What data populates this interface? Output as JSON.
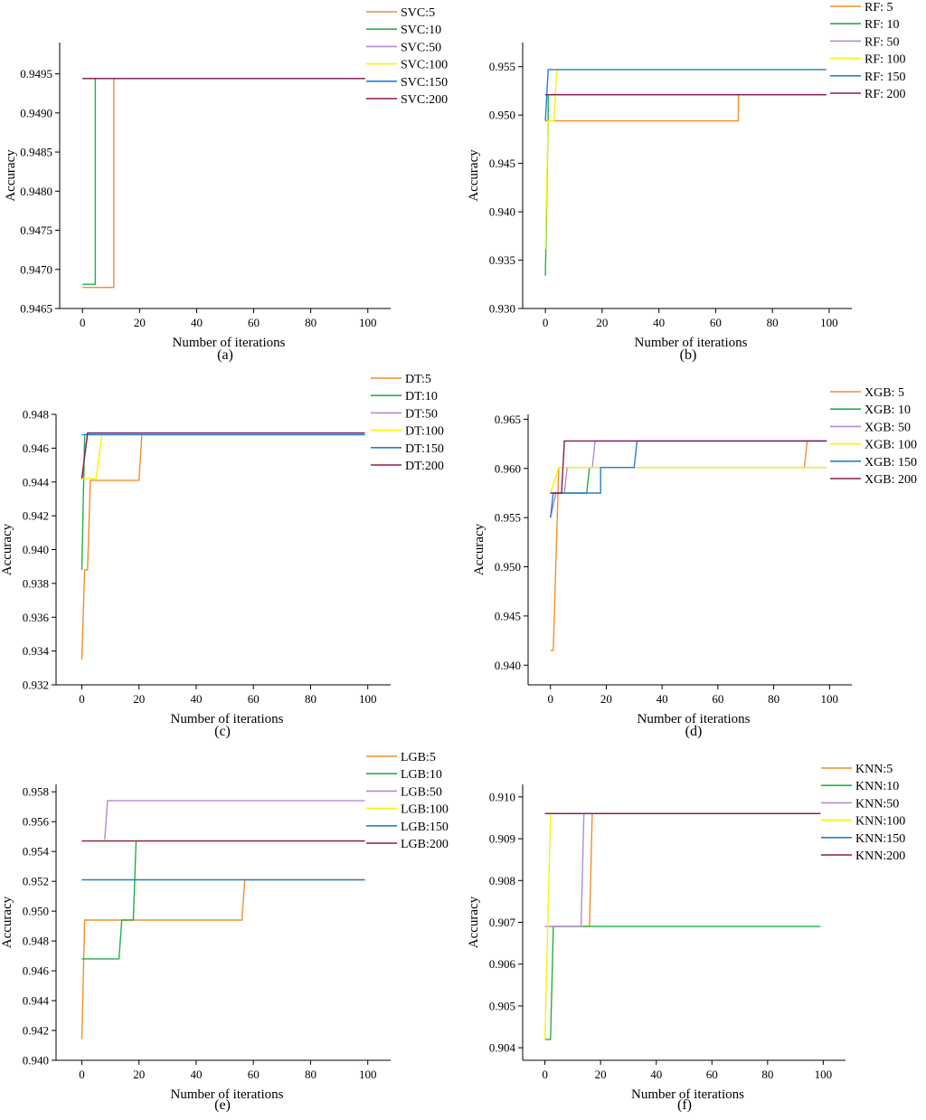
{
  "series_colors": [
    "#f28e2b",
    "#22b04b",
    "#b38bd1",
    "#f5f50a",
    "#1f80d6",
    "#8b1a55"
  ],
  "chart_data": [
    {
      "type": "line",
      "panel_label": "(a)",
      "xlabel": "Number of iterations",
      "ylabel": "Accuracy",
      "xlim": [
        -8,
        108
      ],
      "ylim": [
        0.9465,
        0.9499
      ],
      "xticks": [
        0,
        20,
        40,
        60,
        80,
        100
      ],
      "xtick_labels": [
        "0",
        "20",
        "40",
        "60",
        "80",
        "100"
      ],
      "yticks": [
        0.9465,
        0.947,
        0.9475,
        0.948,
        0.9485,
        0.949,
        0.9495
      ],
      "ytick_labels": [
        "0.9465",
        "0.9470",
        "0.9475",
        "0.9480",
        "0.9485",
        "0.9490",
        "0.9495"
      ],
      "series": [
        {
          "name": "SVC:5",
          "points": [
            [
              0,
              0.94677
            ],
            [
              11,
              0.94677
            ],
            [
              11,
              0.94944
            ],
            [
              99,
              0.94944
            ]
          ]
        },
        {
          "name": "SVC:10",
          "points": [
            [
              0,
              0.94681
            ],
            [
              4.5,
              0.94681
            ],
            [
              4.5,
              0.94944
            ],
            [
              99,
              0.94944
            ]
          ]
        },
        {
          "name": "SVC:50",
          "points": [
            [
              0,
              0.94944
            ],
            [
              99,
              0.94944
            ]
          ]
        },
        {
          "name": "SVC:100",
          "points": [
            [
              0,
              0.94944
            ],
            [
              99,
              0.94944
            ]
          ]
        },
        {
          "name": "SVC:150",
          "points": [
            [
              0,
              0.94944
            ],
            [
              99,
              0.94944
            ]
          ]
        },
        {
          "name": "SVC:200",
          "points": [
            [
              0,
              0.94944
            ],
            [
              99,
              0.94944
            ]
          ]
        }
      ]
    },
    {
      "type": "line",
      "panel_label": "(b)",
      "xlabel": "Number of iterations",
      "ylabel": "Accuracy",
      "xlim": [
        -8,
        108
      ],
      "ylim": [
        0.93,
        0.9575
      ],
      "xticks": [
        0,
        20,
        40,
        60,
        80,
        100
      ],
      "xtick_labels": [
        "0",
        "20",
        "40",
        "60",
        "80",
        "100"
      ],
      "yticks": [
        0.93,
        0.935,
        0.94,
        0.945,
        0.95,
        0.955
      ],
      "ytick_labels": [
        "0.930",
        "0.935",
        "0.940",
        "0.945",
        "0.950",
        "0.955"
      ],
      "series": [
        {
          "name": "RF: 5",
          "points": [
            [
              0,
              0.9494
            ],
            [
              68,
              0.9494
            ],
            [
              68,
              0.9521
            ],
            [
              99,
              0.9521
            ]
          ]
        },
        {
          "name": "RF: 10",
          "points": [
            [
              0,
              0.9334
            ],
            [
              1,
              0.9494
            ],
            [
              1,
              0.9521
            ],
            [
              99,
              0.9521
            ]
          ]
        },
        {
          "name": "RF: 50",
          "points": [
            [
              0,
              0.9521
            ],
            [
              99,
              0.9521
            ]
          ]
        },
        {
          "name": "RF: 100",
          "points": [
            [
              0,
              0.9361
            ],
            [
              1,
              0.9494
            ],
            [
              3,
              0.9494
            ],
            [
              4,
              0.9547
            ],
            [
              99,
              0.9547
            ]
          ]
        },
        {
          "name": "RF: 150",
          "points": [
            [
              0,
              0.9494
            ],
            [
              1,
              0.9547
            ],
            [
              99,
              0.9547
            ]
          ]
        },
        {
          "name": "RF: 200",
          "points": [
            [
              0,
              0.9521
            ],
            [
              99,
              0.9521
            ]
          ]
        }
      ]
    },
    {
      "type": "line",
      "panel_label": "(c)",
      "xlabel": "Number of iterations",
      "ylabel": "Accuracy",
      "xlim": [
        -9,
        108
      ],
      "ylim": [
        0.932,
        0.948
      ],
      "xticks": [
        0,
        20,
        40,
        60,
        80,
        100
      ],
      "xtick_labels": [
        "0",
        "20",
        "40",
        "60",
        "80",
        "100"
      ],
      "yticks": [
        0.932,
        0.934,
        0.936,
        0.938,
        0.94,
        0.942,
        0.944,
        0.946,
        0.948
      ],
      "ytick_labels": [
        "0.932",
        "0.934",
        "0.936",
        "0.938",
        "0.940",
        "0.942",
        "0.944",
        "0.946",
        "0.948"
      ],
      "series": [
        {
          "name": "DT:5",
          "points": [
            [
              0,
              0.9335
            ],
            [
              1,
              0.9388
            ],
            [
              2,
              0.9388
            ],
            [
              3,
              0.9441
            ],
            [
              20,
              0.9441
            ],
            [
              21,
              0.9468
            ],
            [
              99,
              0.9468
            ]
          ]
        },
        {
          "name": "DT:10",
          "points": [
            [
              0,
              0.9388
            ],
            [
              1,
              0.9468
            ],
            [
              99,
              0.9468
            ]
          ]
        },
        {
          "name": "DT:50",
          "points": [
            [
              0,
              0.9442
            ],
            [
              2,
              0.9468
            ],
            [
              99,
              0.9468
            ]
          ]
        },
        {
          "name": "DT:100",
          "points": [
            [
              0,
              0.9442
            ],
            [
              5,
              0.9442
            ],
            [
              7,
              0.9468
            ],
            [
              99,
              0.9468
            ]
          ]
        },
        {
          "name": "DT:150",
          "points": [
            [
              0,
              0.9468
            ],
            [
              99,
              0.9468
            ]
          ]
        },
        {
          "name": "DT:200",
          "points": [
            [
              0,
              0.9442
            ],
            [
              2,
              0.9469
            ],
            [
              99,
              0.9469
            ]
          ]
        }
      ]
    },
    {
      "type": "line",
      "panel_label": "(d)",
      "xlabel": "Number of iterations",
      "ylabel": "Accuracy",
      "xlim": [
        -8,
        108
      ],
      "ylim": [
        0.938,
        0.9655
      ],
      "xticks": [
        0,
        20,
        40,
        60,
        80,
        100
      ],
      "xtick_labels": [
        "0",
        "20",
        "40",
        "60",
        "80",
        "100"
      ],
      "yticks": [
        0.94,
        0.945,
        0.95,
        0.955,
        0.96,
        0.965
      ],
      "ytick_labels": [
        "0.940",
        "0.945",
        "0.950",
        "0.955",
        "0.960",
        "0.965"
      ],
      "series": [
        {
          "name": "XGB: 5",
          "points": [
            [
              0,
              0.9415
            ],
            [
              1,
              0.9415
            ],
            [
              3,
              0.9601
            ],
            [
              91,
              0.9601
            ],
            [
              92,
              0.9628
            ],
            [
              99,
              0.9628
            ]
          ]
        },
        {
          "name": "XGB: 10",
          "points": [
            [
              0,
              0.9575
            ],
            [
              13,
              0.9575
            ],
            [
              14,
              0.9601
            ],
            [
              99,
              0.9601
            ]
          ]
        },
        {
          "name": "XGB: 50",
          "points": [
            [
              0,
              0.955
            ],
            [
              2,
              0.9575
            ],
            [
              5,
              0.9575
            ],
            [
              6,
              0.9601
            ],
            [
              15,
              0.9601
            ],
            [
              16,
              0.9628
            ],
            [
              99,
              0.9628
            ]
          ]
        },
        {
          "name": "XGB: 100",
          "points": [
            [
              0,
              0.9575
            ],
            [
              3,
              0.9601
            ],
            [
              99,
              0.9601
            ]
          ]
        },
        {
          "name": "XGB: 150",
          "points": [
            [
              0,
              0.955
            ],
            [
              1,
              0.9575
            ],
            [
              18,
              0.9575
            ],
            [
              18,
              0.9601
            ],
            [
              30,
              0.9601
            ],
            [
              31,
              0.9628
            ],
            [
              99,
              0.9628
            ]
          ]
        },
        {
          "name": "XGB: 200",
          "points": [
            [
              0,
              0.9575
            ],
            [
              4,
              0.9575
            ],
            [
              5,
              0.9628
            ],
            [
              99,
              0.9628
            ]
          ]
        }
      ]
    },
    {
      "type": "line",
      "panel_label": "(e)",
      "xlabel": "Number of iterations",
      "ylabel": "Accuracy",
      "xlim": [
        -9,
        108
      ],
      "ylim": [
        0.94,
        0.9585
      ],
      "xticks": [
        0,
        20,
        40,
        60,
        80,
        100
      ],
      "xtick_labels": [
        "0",
        "20",
        "40",
        "60",
        "80",
        "100"
      ],
      "yticks": [
        0.94,
        0.942,
        0.944,
        0.946,
        0.948,
        0.95,
        0.952,
        0.954,
        0.956,
        0.958
      ],
      "ytick_labels": [
        "0.940",
        "0.942",
        "0.944",
        "0.946",
        "0.948",
        "0.950",
        "0.952",
        "0.954",
        "0.956",
        "0.958"
      ],
      "series": [
        {
          "name": "LGB:5",
          "points": [
            [
              0,
              0.9414
            ],
            [
              1,
              0.9494
            ],
            [
              56,
              0.9494
            ],
            [
              57,
              0.9521
            ],
            [
              99,
              0.9521
            ]
          ]
        },
        {
          "name": "LGB:10",
          "points": [
            [
              0,
              0.9468
            ],
            [
              13,
              0.9468
            ],
            [
              14,
              0.9494
            ],
            [
              18,
              0.9494
            ],
            [
              19,
              0.9547
            ],
            [
              99,
              0.9547
            ]
          ]
        },
        {
          "name": "LGB:50",
          "points": [
            [
              8,
              0.9548
            ],
            [
              9,
              0.9574
            ],
            [
              99,
              0.9574
            ]
          ]
        },
        {
          "name": "LGB:100",
          "points": [
            [
              0,
              0.9547
            ],
            [
              99,
              0.9547
            ]
          ]
        },
        {
          "name": "LGB:150",
          "points": [
            [
              0,
              0.9521
            ],
            [
              99,
              0.9521
            ]
          ]
        },
        {
          "name": "LGB:200",
          "points": [
            [
              0,
              0.9547
            ],
            [
              99,
              0.9547
            ]
          ]
        }
      ]
    },
    {
      "type": "line",
      "panel_label": "(f)",
      "xlabel": "Number of iterations",
      "ylabel": "Accuracy",
      "xlim": [
        -8,
        108
      ],
      "ylim": [
        0.9037,
        0.9103
      ],
      "xticks": [
        0,
        20,
        40,
        60,
        80,
        100
      ],
      "xtick_labels": [
        "0",
        "20",
        "40",
        "60",
        "80",
        "100"
      ],
      "yticks": [
        0.904,
        0.905,
        0.906,
        0.907,
        0.908,
        0.909,
        0.91
      ],
      "ytick_labels": [
        "0.904",
        "0.905",
        "0.906",
        "0.907",
        "0.908",
        "0.909",
        "0.910"
      ],
      "series": [
        {
          "name": "KNN:5",
          "points": [
            [
              0,
              0.9069
            ],
            [
              16,
              0.9069
            ],
            [
              17,
              0.9096
            ],
            [
              99,
              0.9096
            ]
          ]
        },
        {
          "name": "KNN:10",
          "points": [
            [
              0,
              0.9042
            ],
            [
              2,
              0.9042
            ],
            [
              3,
              0.9069
            ],
            [
              99,
              0.9069
            ]
          ]
        },
        {
          "name": "KNN:50",
          "points": [
            [
              0,
              0.9069
            ],
            [
              13,
              0.9069
            ],
            [
              14,
              0.9096
            ],
            [
              99,
              0.9096
            ]
          ]
        },
        {
          "name": "KNN:100",
          "points": [
            [
              0,
              0.9042
            ],
            [
              2,
              0.9096
            ],
            [
              99,
              0.9096
            ]
          ]
        },
        {
          "name": "KNN:150",
          "points": [
            [
              0,
              0.9096
            ],
            [
              99,
              0.9096
            ]
          ]
        },
        {
          "name": "KNN:200",
          "points": [
            [
              0,
              0.9096
            ],
            [
              99,
              0.9096
            ]
          ]
        }
      ]
    }
  ]
}
